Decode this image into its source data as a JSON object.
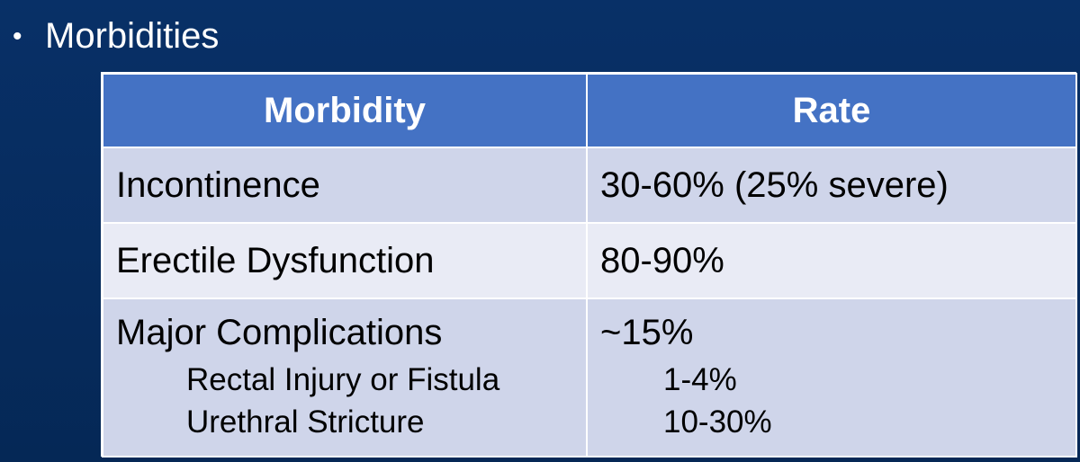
{
  "slide": {
    "bullet": "•",
    "heading": "Morbidities"
  },
  "table": {
    "headers": [
      "Morbidity",
      "Rate"
    ],
    "rows": [
      {
        "morbidity": "Incontinence",
        "rate": "30-60% (25% severe)"
      },
      {
        "morbidity": "Erectile Dysfunction",
        "rate": "80-90%"
      },
      {
        "morbidity": "Major Complications",
        "rate": "~15%",
        "sub_items": [
          {
            "morbidity": "Rectal Injury or Fistula",
            "rate": "1-4%"
          },
          {
            "morbidity": "Urethral Stricture",
            "rate": "10-30%"
          }
        ]
      }
    ]
  },
  "colors": {
    "background": "#062a5d",
    "header": "#4472c4",
    "row_dark": "#cfd5ea",
    "row_light": "#e9ebf5",
    "white": "#ffffff"
  }
}
